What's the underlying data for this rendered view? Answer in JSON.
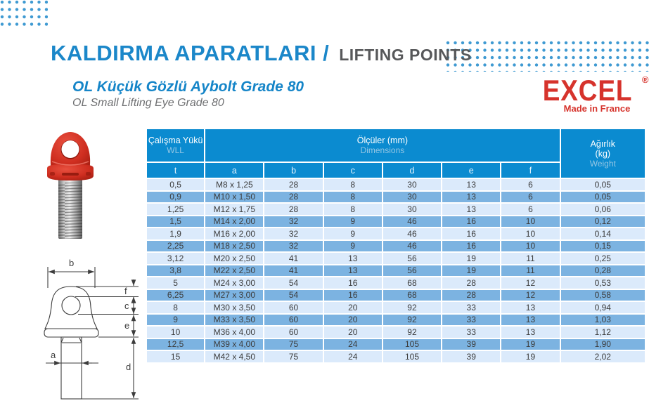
{
  "header": {
    "title_tr": "KALDIRMA APARATLARI /",
    "title_en": "LIFTING POINTS"
  },
  "product": {
    "title_tr": "OL Küçük Gözlü Aybolt Grade 80",
    "title_en": "OL Small Lifting Eye Grade 80"
  },
  "brand": {
    "name": "EXCEL",
    "registered": "®",
    "tagline": "Made in France"
  },
  "colors": {
    "header_blue": "#0b8bd0",
    "row_light": "#dbeafb",
    "row_dark": "#7cb3e1",
    "title_blue": "#1585c8",
    "heading_gray": "#57585a",
    "brand_red": "#d6332c",
    "dot_blue": "#3f9ad2"
  },
  "table": {
    "header": {
      "wll_line1": "Çalışma Yükü",
      "wll_line2": "WLL",
      "dims_line1": "Ölçüler (mm)",
      "dims_line2": "Dimensions",
      "weight_line1": "Ağırlık",
      "weight_line2": "(kg)",
      "weight_line3": "Weight",
      "unit": "t",
      "dim_cols": {
        "a": "a",
        "b": "b",
        "c": "c",
        "d": "d",
        "e": "e",
        "f": "f"
      }
    },
    "rows": [
      [
        "0,5",
        "M8 x 1,25",
        "28",
        "8",
        "30",
        "13",
        "6",
        "0,05"
      ],
      [
        "0,9",
        "M10 x 1,50",
        "28",
        "8",
        "30",
        "13",
        "6",
        "0,05"
      ],
      [
        "1,25",
        "M12 x 1,75",
        "28",
        "8",
        "30",
        "13",
        "6",
        "0,06"
      ],
      [
        "1,5",
        "M14 x 2,00",
        "32",
        "9",
        "46",
        "16",
        "10",
        "0,12"
      ],
      [
        "1,9",
        "M16 x 2,00",
        "32",
        "9",
        "46",
        "16",
        "10",
        "0,14"
      ],
      [
        "2,25",
        "M18 x 2,50",
        "32",
        "9",
        "46",
        "16",
        "10",
        "0,15"
      ],
      [
        "3,12",
        "M20 x 2,50",
        "41",
        "13",
        "56",
        "19",
        "11",
        "0,25"
      ],
      [
        "3,8",
        "M22 x 2,50",
        "41",
        "13",
        "56",
        "19",
        "11",
        "0,28"
      ],
      [
        "5",
        "M24 x 3,00",
        "54",
        "16",
        "68",
        "28",
        "12",
        "0,53"
      ],
      [
        "6,25",
        "M27 x 3,00",
        "54",
        "16",
        "68",
        "28",
        "12",
        "0,58"
      ],
      [
        "8",
        "M30 x 3,50",
        "60",
        "20",
        "92",
        "33",
        "13",
        "0,94"
      ],
      [
        "9",
        "M33 x 3,50",
        "60",
        "20",
        "92",
        "33",
        "13",
        "1,03"
      ],
      [
        "10",
        "M36 x 4,00",
        "60",
        "20",
        "92",
        "33",
        "13",
        "1,12"
      ],
      [
        "12,5",
        "M39 x 4,00",
        "75",
        "24",
        "105",
        "39",
        "19",
        "1,90"
      ],
      [
        "15",
        "M42 x 4,50",
        "75",
        "24",
        "105",
        "39",
        "19",
        "2,02"
      ]
    ]
  },
  "drawing": {
    "labels": {
      "a": "a",
      "b": "b",
      "c": "c",
      "d": "d",
      "e": "e",
      "f": "f"
    }
  }
}
